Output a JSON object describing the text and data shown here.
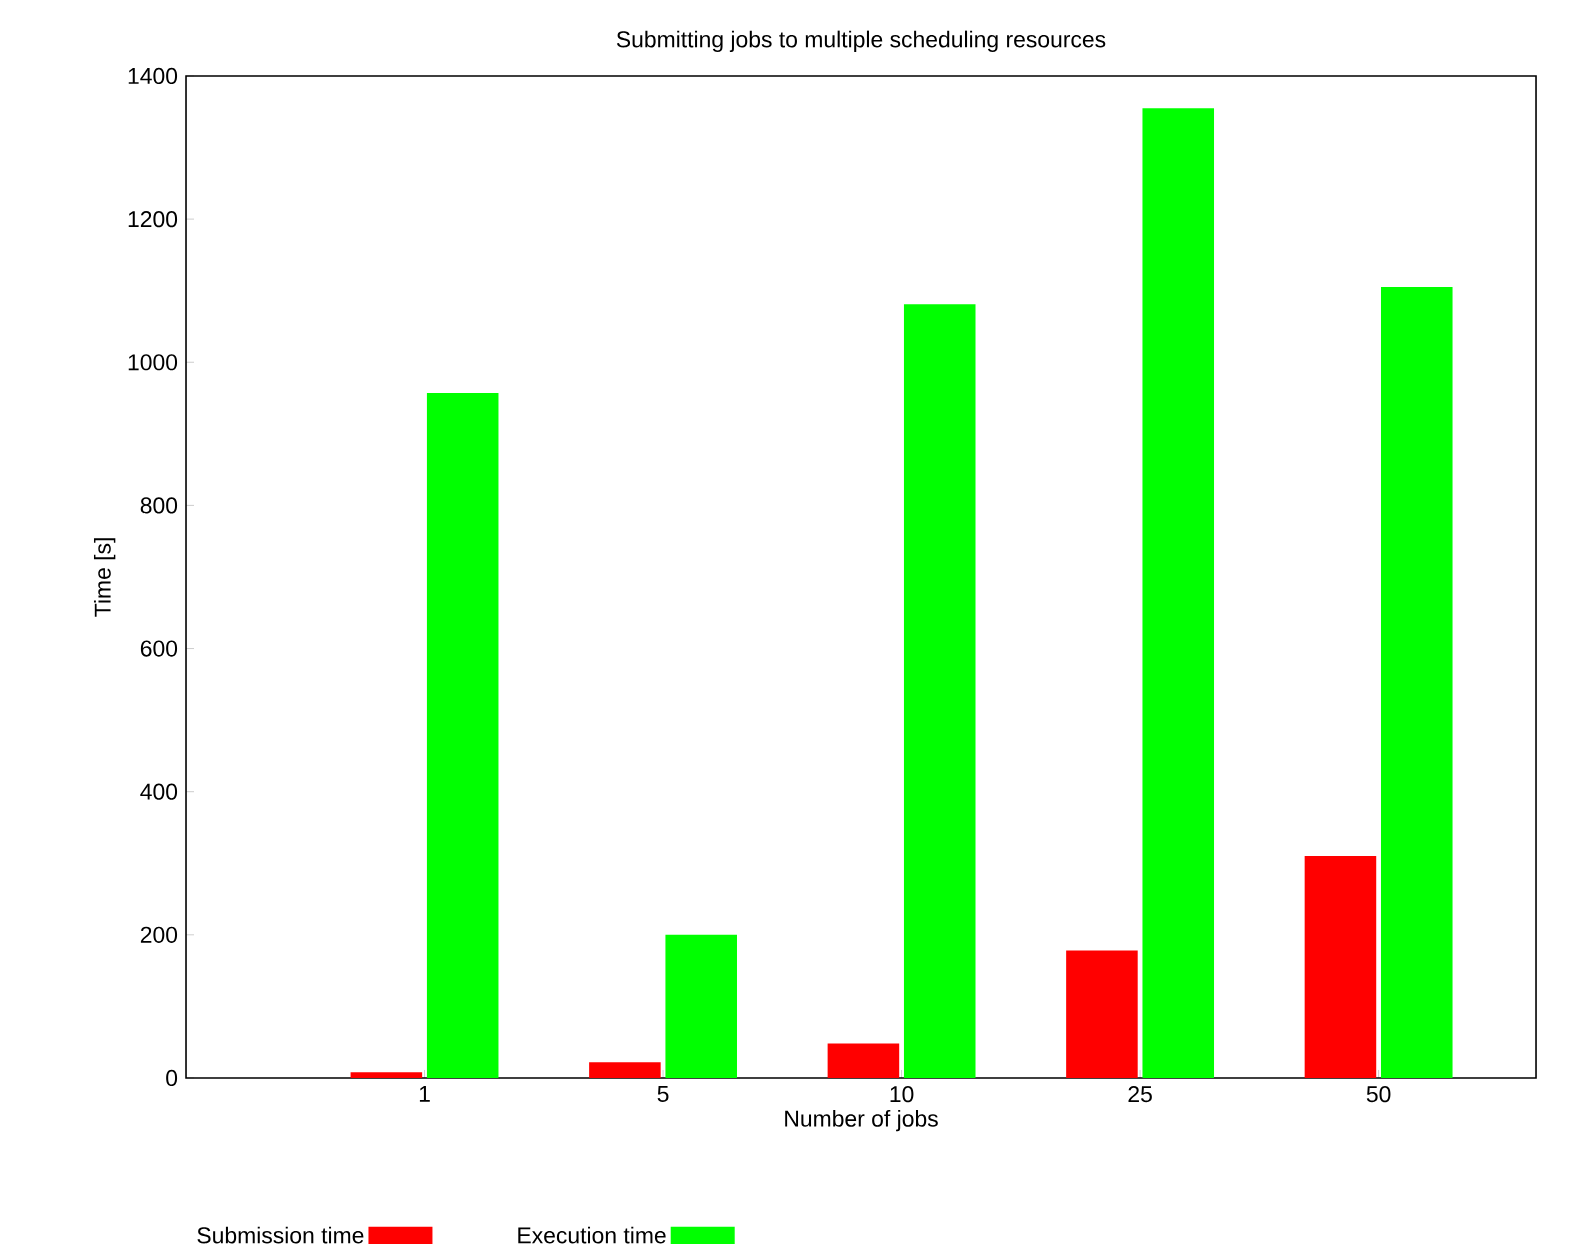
{
  "chart_data": {
    "type": "bar",
    "title": "Submitting jobs to multiple scheduling resources",
    "xlabel": "Number of jobs",
    "ylabel": "Time [s]",
    "categories": [
      "1",
      "5",
      "10",
      "25",
      "50"
    ],
    "series": [
      {
        "name": "Submission time",
        "color": "#ff0000",
        "values": [
          8,
          22,
          48,
          178,
          310
        ]
      },
      {
        "name": "Execution time",
        "color": "#00ff00",
        "values": [
          957,
          200,
          1081,
          1355,
          1105
        ]
      }
    ],
    "ylim": [
      0,
      1400
    ],
    "yticks": [
      0,
      200,
      400,
      600,
      800,
      1000,
      1200,
      1400
    ],
    "grid": false,
    "legend": "bottom"
  }
}
